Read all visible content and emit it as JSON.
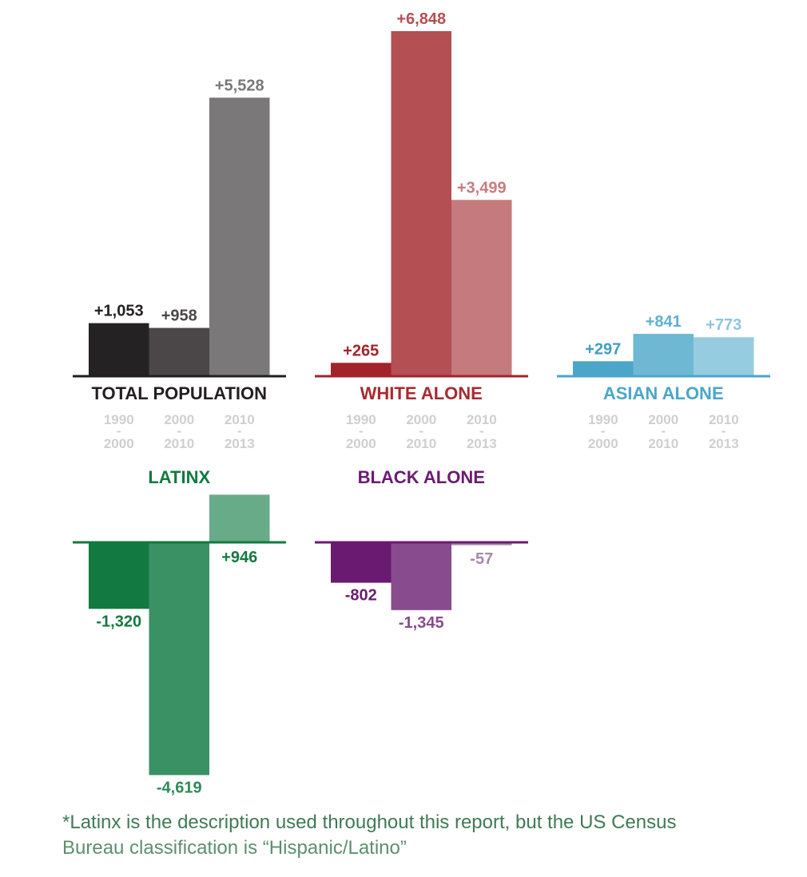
{
  "chart_data": [
    {
      "type": "bar",
      "title": "TOTAL POPULATION",
      "categories": [
        "1990 - 2000",
        "2000 - 2010",
        "2010 - 2013"
      ],
      "values": [
        1053,
        958,
        5528
      ],
      "value_labels": [
        "+1,053",
        "+958",
        "+5,528"
      ],
      "colors": [
        "#252223",
        "#4b4748",
        "#7a7879"
      ],
      "label_colors": [
        "#252223",
        "#4b4748",
        "#7a7879"
      ],
      "title_color": "#231f20",
      "axis_color": "#231f20"
    },
    {
      "type": "bar",
      "title": "WHITE ALONE",
      "categories": [
        "1990 - 2000",
        "2000 - 2010",
        "2010 - 2013"
      ],
      "values": [
        265,
        6848,
        3499
      ],
      "value_labels": [
        "+265",
        "+6,848",
        "+3,499"
      ],
      "colors": [
        "#a3232a",
        "#b44f54",
        "#c57a7d"
      ],
      "label_colors": [
        "#a3232a",
        "#b44f54",
        "#c97c7f"
      ],
      "title_color": "#a82a2f",
      "axis_color": "#a3232a"
    },
    {
      "type": "bar",
      "title": "ASIAN ALONE",
      "categories": [
        "1990 - 2000",
        "2000 - 2010",
        "2010 - 2013"
      ],
      "values": [
        297,
        841,
        773
      ],
      "value_labels": [
        "+297",
        "+841",
        "+773"
      ],
      "colors": [
        "#4ba6c9",
        "#6fb8d4",
        "#96cce0"
      ],
      "label_colors": [
        "#3f9fc4",
        "#5fb0cf",
        "#8cc6dc"
      ],
      "title_color": "#4ba6c9",
      "axis_color": "#4ba6c9"
    },
    {
      "type": "bar",
      "title": "LATINX",
      "categories": [
        "1990 - 2000",
        "2000 - 2010",
        "2010 - 2013"
      ],
      "values": [
        -1320,
        -4619,
        946
      ],
      "value_labels": [
        "-1,320",
        "-4,619",
        "+946"
      ],
      "colors": [
        "#127a40",
        "#3a9164",
        "#67ab89"
      ],
      "label_colors": [
        "#127a40",
        "#2f8a5a",
        "#127a40"
      ],
      "title_color": "#127a40",
      "axis_color": "#127a40"
    },
    {
      "type": "bar",
      "title": "BLACK ALONE",
      "categories": [
        "1990 - 2000",
        "2000 - 2010",
        "2010 - 2013"
      ],
      "values": [
        -802,
        -1345,
        -57
      ],
      "value_labels": [
        "-802",
        "-1,345",
        "-57"
      ],
      "colors": [
        "#6a1b71",
        "#884b8e",
        "#a887ac"
      ],
      "label_colors": [
        "#6a1b71",
        "#884b8e",
        "#a887ac"
      ],
      "title_color": "#6a1b71",
      "axis_color": "#6a1b71"
    }
  ],
  "footnote": {
    "line1": "*Latinx is the description used throughout this report, but the US Census",
    "line2": "Bureau classification is “Hispanic/Latino”"
  }
}
